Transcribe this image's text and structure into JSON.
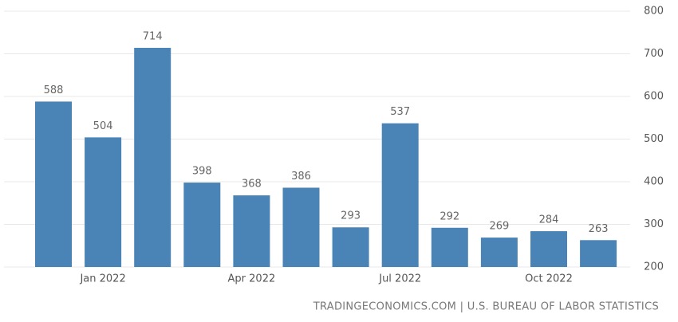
{
  "chart_data": {
    "type": "bar",
    "categories": [
      null,
      "Jan 2022",
      null,
      null,
      "Apr 2022",
      null,
      null,
      "Jul 2022",
      null,
      null,
      "Oct 2022",
      null
    ],
    "values": [
      588,
      504,
      714,
      398,
      368,
      386,
      293,
      537,
      292,
      269,
      284,
      263
    ],
    "color": "#4a84b6",
    "ylim": [
      200,
      800
    ],
    "yticks": [
      200,
      300,
      400,
      500,
      600,
      700,
      800
    ],
    "grid": true,
    "source": "TRADINGECONOMICS.COM | U.S. BUREAU OF LABOR STATISTICS"
  }
}
